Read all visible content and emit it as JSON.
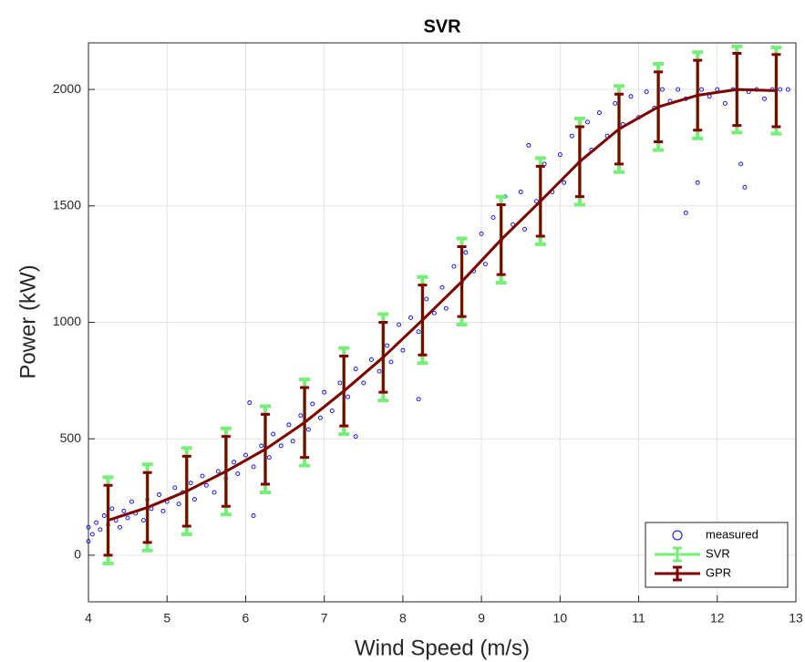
{
  "chart_data": {
    "type": "scatter",
    "title": "SVR",
    "x_label": "Wind Speed (m/s)",
    "y_label": "Power (kW)",
    "xlim": [
      4,
      13
    ],
    "ylim": [
      -200,
      2200
    ],
    "xticks": [
      4,
      5,
      6,
      7,
      8,
      9,
      10,
      11,
      12,
      13
    ],
    "yticks": [
      0,
      500,
      1000,
      1500,
      2000
    ],
    "grid": true,
    "legend": "lower right",
    "series": [
      {
        "name": "measured",
        "kind": "scatter",
        "color": "#0000ff",
        "x": [
          4.0,
          4.0,
          4.05,
          4.1,
          4.15,
          4.2,
          4.25,
          4.3,
          4.35,
          4.4,
          4.45,
          4.5,
          4.55,
          4.6,
          4.7,
          4.75,
          4.8,
          4.9,
          4.95,
          5.0,
          5.1,
          5.15,
          5.2,
          5.3,
          5.35,
          5.45,
          5.5,
          5.6,
          5.65,
          5.75,
          5.85,
          5.9,
          6.0,
          6.05,
          6.1,
          6.1,
          6.2,
          6.3,
          6.35,
          6.45,
          6.55,
          6.6,
          6.7,
          6.8,
          6.85,
          6.95,
          7.0,
          7.1,
          7.2,
          7.3,
          7.4,
          7.4,
          7.5,
          7.6,
          7.7,
          7.8,
          7.85,
          7.95,
          8.0,
          8.1,
          8.2,
          8.2,
          8.3,
          8.4,
          8.5,
          8.55,
          8.65,
          8.75,
          8.8,
          8.9,
          9.0,
          9.05,
          9.15,
          9.25,
          9.3,
          9.4,
          9.5,
          9.55,
          9.6,
          9.7,
          9.8,
          9.9,
          10.0,
          10.05,
          10.15,
          10.25,
          10.35,
          10.4,
          10.5,
          10.6,
          10.7,
          10.8,
          10.9,
          11.0,
          11.1,
          11.2,
          11.3,
          11.4,
          11.5,
          11.6,
          11.6,
          11.75,
          11.8,
          11.9,
          12.0,
          12.1,
          12.2,
          12.3,
          12.35,
          12.4,
          12.5,
          12.6,
          12.7,
          12.8,
          12.9
        ],
        "values": [
          60,
          120,
          90,
          140,
          110,
          170,
          130,
          200,
          150,
          120,
          190,
          160,
          230,
          180,
          150,
          240,
          200,
          260,
          190,
          230,
          290,
          220,
          270,
          310,
          240,
          340,
          300,
          270,
          360,
          330,
          400,
          350,
          430,
          655,
          170,
          380,
          470,
          420,
          520,
          470,
          560,
          490,
          600,
          540,
          650,
          590,
          700,
          620,
          740,
          680,
          510,
          800,
          740,
          840,
          790,
          900,
          830,
          990,
          880,
          1020,
          670,
          960,
          1100,
          1040,
          1150,
          1060,
          1240,
          1170,
          1300,
          1220,
          1380,
          1250,
          1450,
          1350,
          1540,
          1420,
          1560,
          1400,
          1760,
          1520,
          1680,
          1560,
          1720,
          1600,
          1800,
          1690,
          1860,
          1740,
          1900,
          1800,
          1940,
          1850,
          1970,
          1880,
          1990,
          1920,
          2000,
          1950,
          2000,
          1470,
          1960,
          1600,
          2000,
          1970,
          2000,
          1940,
          2000,
          1680,
          1580,
          1990,
          2000,
          1960,
          2000,
          2000,
          2000
        ]
      },
      {
        "name": "SVR",
        "kind": "errorline",
        "color": "#77ee77",
        "x": [
          4.25,
          4.75,
          5.25,
          5.75,
          6.25,
          6.75,
          7.25,
          7.75,
          8.25,
          8.75,
          9.25,
          9.75,
          10.25,
          10.75,
          11.25,
          11.75,
          12.25,
          12.75
        ],
        "values": [
          150,
          205,
          275,
          360,
          455,
          570,
          705,
          850,
          1010,
          1175,
          1355,
          1520,
          1690,
          1830,
          1925,
          1975,
          2000,
          1995
        ],
        "errors": [
          185,
          185,
          185,
          185,
          185,
          185,
          185,
          185,
          185,
          185,
          185,
          185,
          185,
          185,
          185,
          185,
          185,
          185
        ]
      },
      {
        "name": "GPR",
        "kind": "errorline",
        "color": "#800000",
        "x": [
          4.25,
          4.75,
          5.25,
          5.75,
          6.25,
          6.75,
          7.25,
          7.75,
          8.25,
          8.75,
          9.25,
          9.75,
          10.25,
          10.75,
          11.25,
          11.75,
          12.25,
          12.75
        ],
        "values": [
          150,
          205,
          275,
          360,
          455,
          570,
          705,
          850,
          1010,
          1175,
          1355,
          1520,
          1690,
          1830,
          1925,
          1975,
          2000,
          1995
        ],
        "errors": [
          150,
          150,
          150,
          150,
          150,
          150,
          150,
          150,
          150,
          150,
          150,
          150,
          150,
          150,
          150,
          150,
          155,
          155
        ]
      }
    ]
  }
}
